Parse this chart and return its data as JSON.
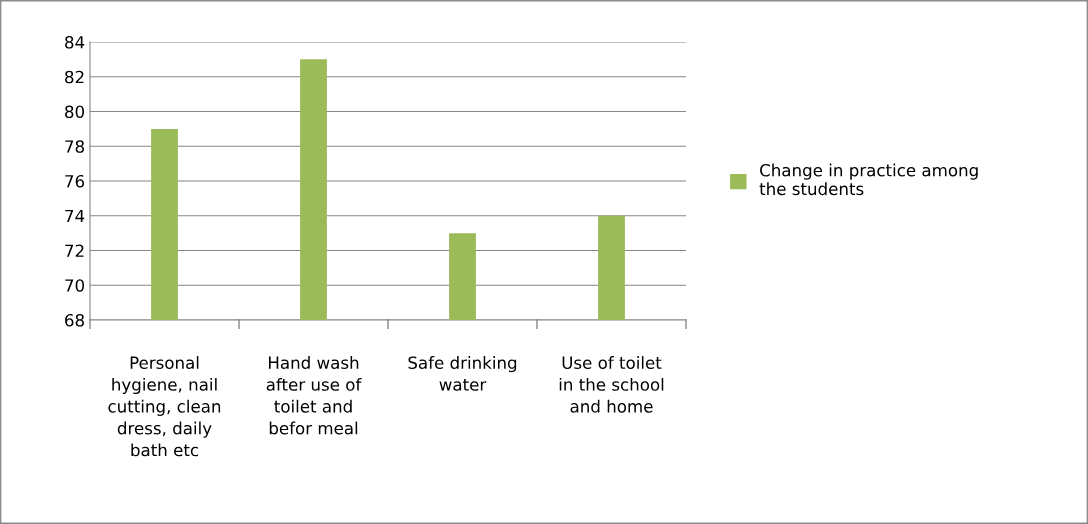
{
  "chart_data": {
    "type": "bar",
    "categories": [
      "Personal\nhygiene, nail\ncutting, clean\ndress, daily\nbath etc",
      "Hand wash\nafter use of\ntoilet and\nbefor meal",
      "Safe drinking\nwater",
      "Use of toilet\nin the school\nand home"
    ],
    "series": [
      {
        "name": "Change in practice among\nthe students",
        "color": "#9bbb59",
        "values": [
          79,
          83,
          73,
          74
        ]
      }
    ],
    "ylim": [
      68,
      84
    ],
    "yticks": [
      68,
      70,
      72,
      74,
      76,
      78,
      80,
      82,
      84
    ],
    "grid": "y",
    "legend": "right"
  }
}
